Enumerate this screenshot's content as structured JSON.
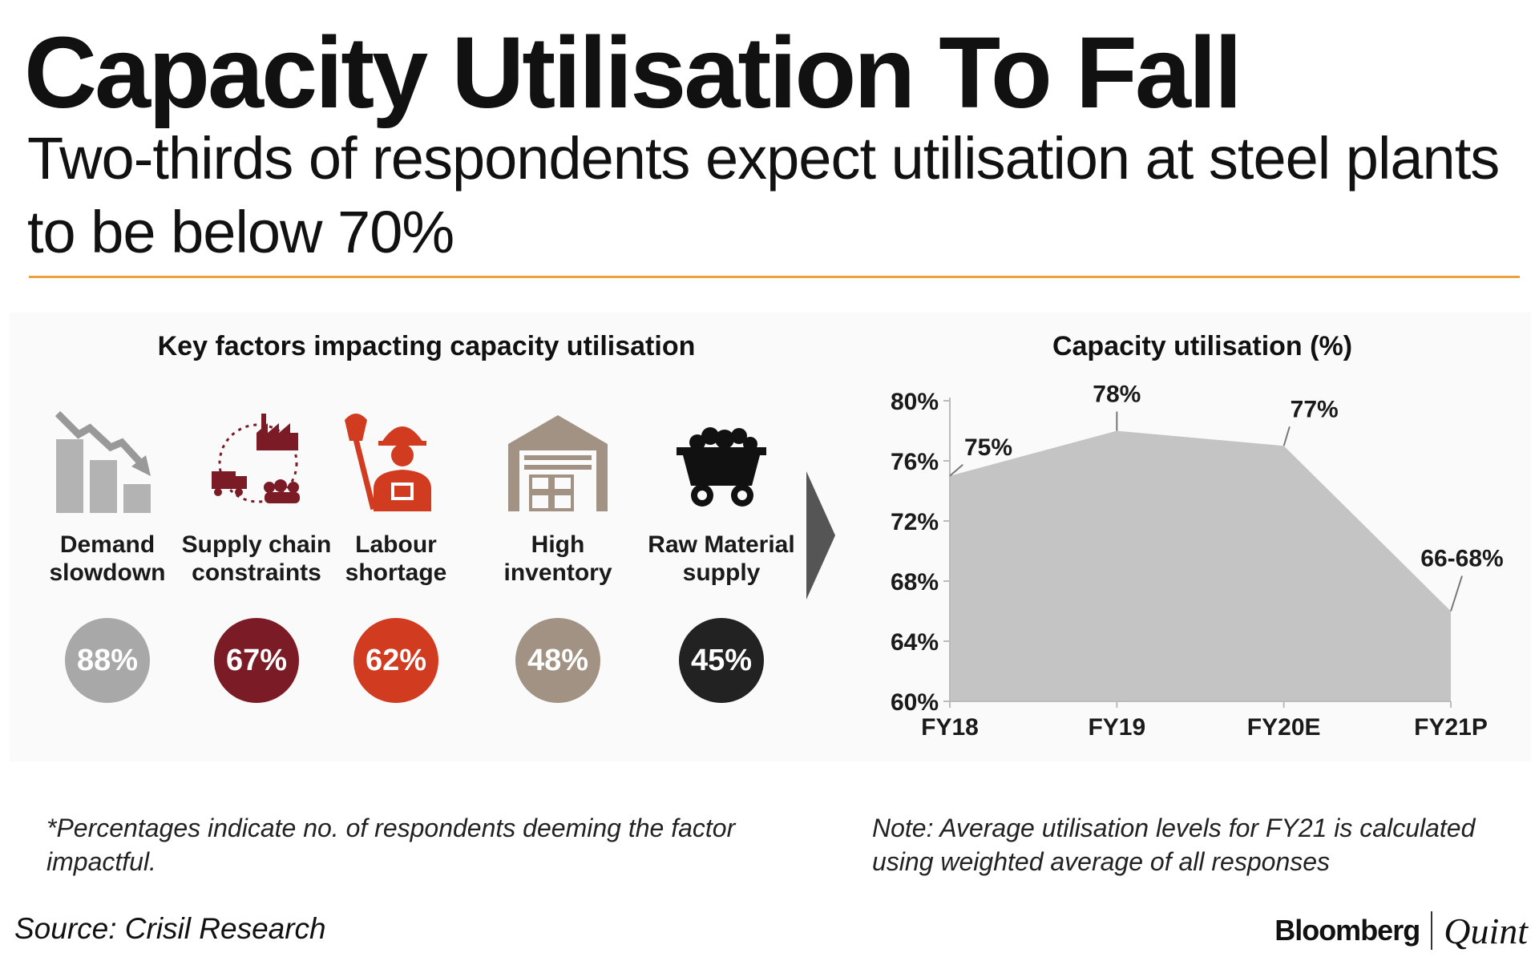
{
  "header": {
    "title": "Capacity Utilisation To Fall",
    "subtitle": "Two-thirds of respondents expect utilisation at steel plants to be below 70%"
  },
  "factors_panel": {
    "title": "Key factors impacting capacity utilisation",
    "items": [
      {
        "label": "Demand slowdown",
        "percent": "88%",
        "color": "#a8a8a8",
        "icon": "demand-slowdown-icon"
      },
      {
        "label": "Supply chain constraints",
        "percent": "67%",
        "color": "#7a1b25",
        "icon": "supply-chain-icon"
      },
      {
        "label": "Labour shortage",
        "percent": "62%",
        "color": "#d13b1f",
        "icon": "labour-worker-icon"
      },
      {
        "label": "High inventory",
        "percent": "48%",
        "color": "#a19283",
        "icon": "warehouse-icon"
      },
      {
        "label": "Raw Material supply",
        "percent": "45%",
        "color": "#222222",
        "icon": "coal-cart-icon"
      }
    ],
    "footnote": "*Percentages indicate no. of respondents deeming the factor impactful."
  },
  "chart_panel": {
    "title": "Capacity utilisation (%)",
    "note": "Note: Average utilisation levels for FY21 is calculated using weighted average of all responses"
  },
  "chart_data": {
    "type": "area",
    "title": "Capacity utilisation (%)",
    "categories": [
      "FY18",
      "FY19",
      "FY20E",
      "FY21P"
    ],
    "values": [
      75,
      78,
      77,
      66
    ],
    "data_labels": [
      "75%",
      "78%",
      "77%",
      "66-68%"
    ],
    "yticks": [
      60,
      64,
      68,
      72,
      76,
      80
    ],
    "ytick_labels": [
      "60%",
      "64%",
      "68%",
      "72%",
      "76%",
      "80%"
    ],
    "ylim": [
      60,
      80
    ],
    "xlabel": "",
    "ylabel": "",
    "fill_color": "#c4c4c4",
    "grid": false
  },
  "footer": {
    "source": "Source: Crisil Research",
    "logo_left": "Bloomberg",
    "logo_right": "Quint"
  },
  "colors": {
    "accent_rule": "#e8a33d"
  }
}
